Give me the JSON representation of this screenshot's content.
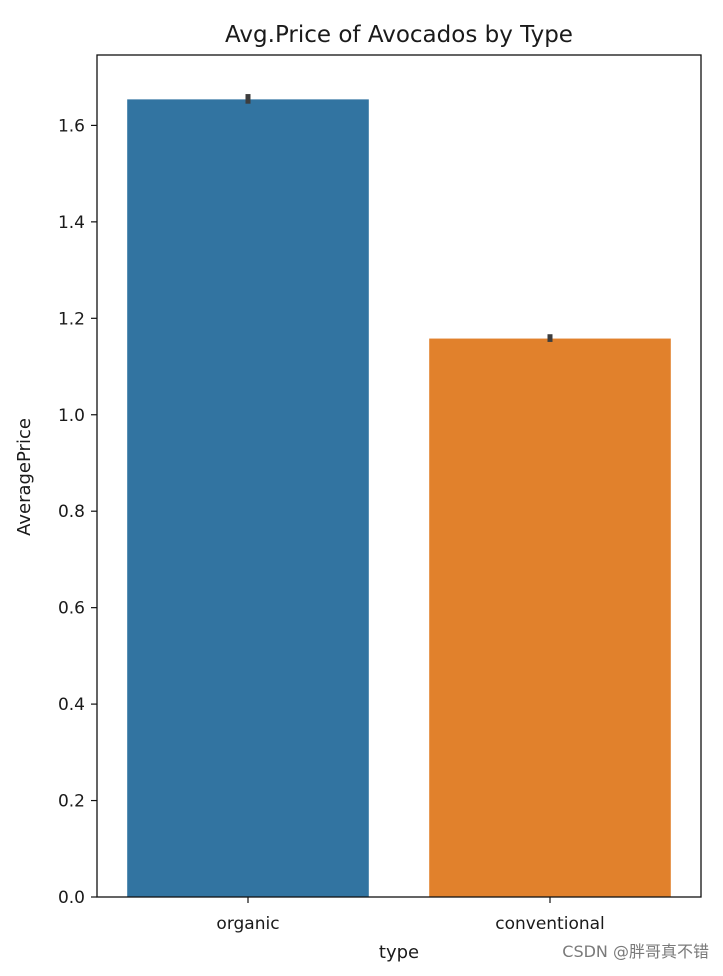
{
  "chart_data": {
    "type": "bar",
    "title": "Avg.Price of Avocados by Type",
    "xlabel": "type",
    "ylabel": "AveragePrice",
    "categories": [
      "organic",
      "conventional"
    ],
    "values": [
      1.654,
      1.158
    ],
    "error_bars": [
      [
        1.645,
        1.665
      ],
      [
        1.151,
        1.167
      ]
    ],
    "colors": [
      "#3274a1",
      "#e1812c"
    ],
    "ylim": [
      0.0,
      1.746
    ],
    "yticks": [
      "0.0",
      "0.2",
      "0.4",
      "0.6",
      "0.8",
      "1.0",
      "1.2",
      "1.4",
      "1.6"
    ],
    "grid": false,
    "legend": "none"
  },
  "watermark": "CSDN @胖哥真不错"
}
